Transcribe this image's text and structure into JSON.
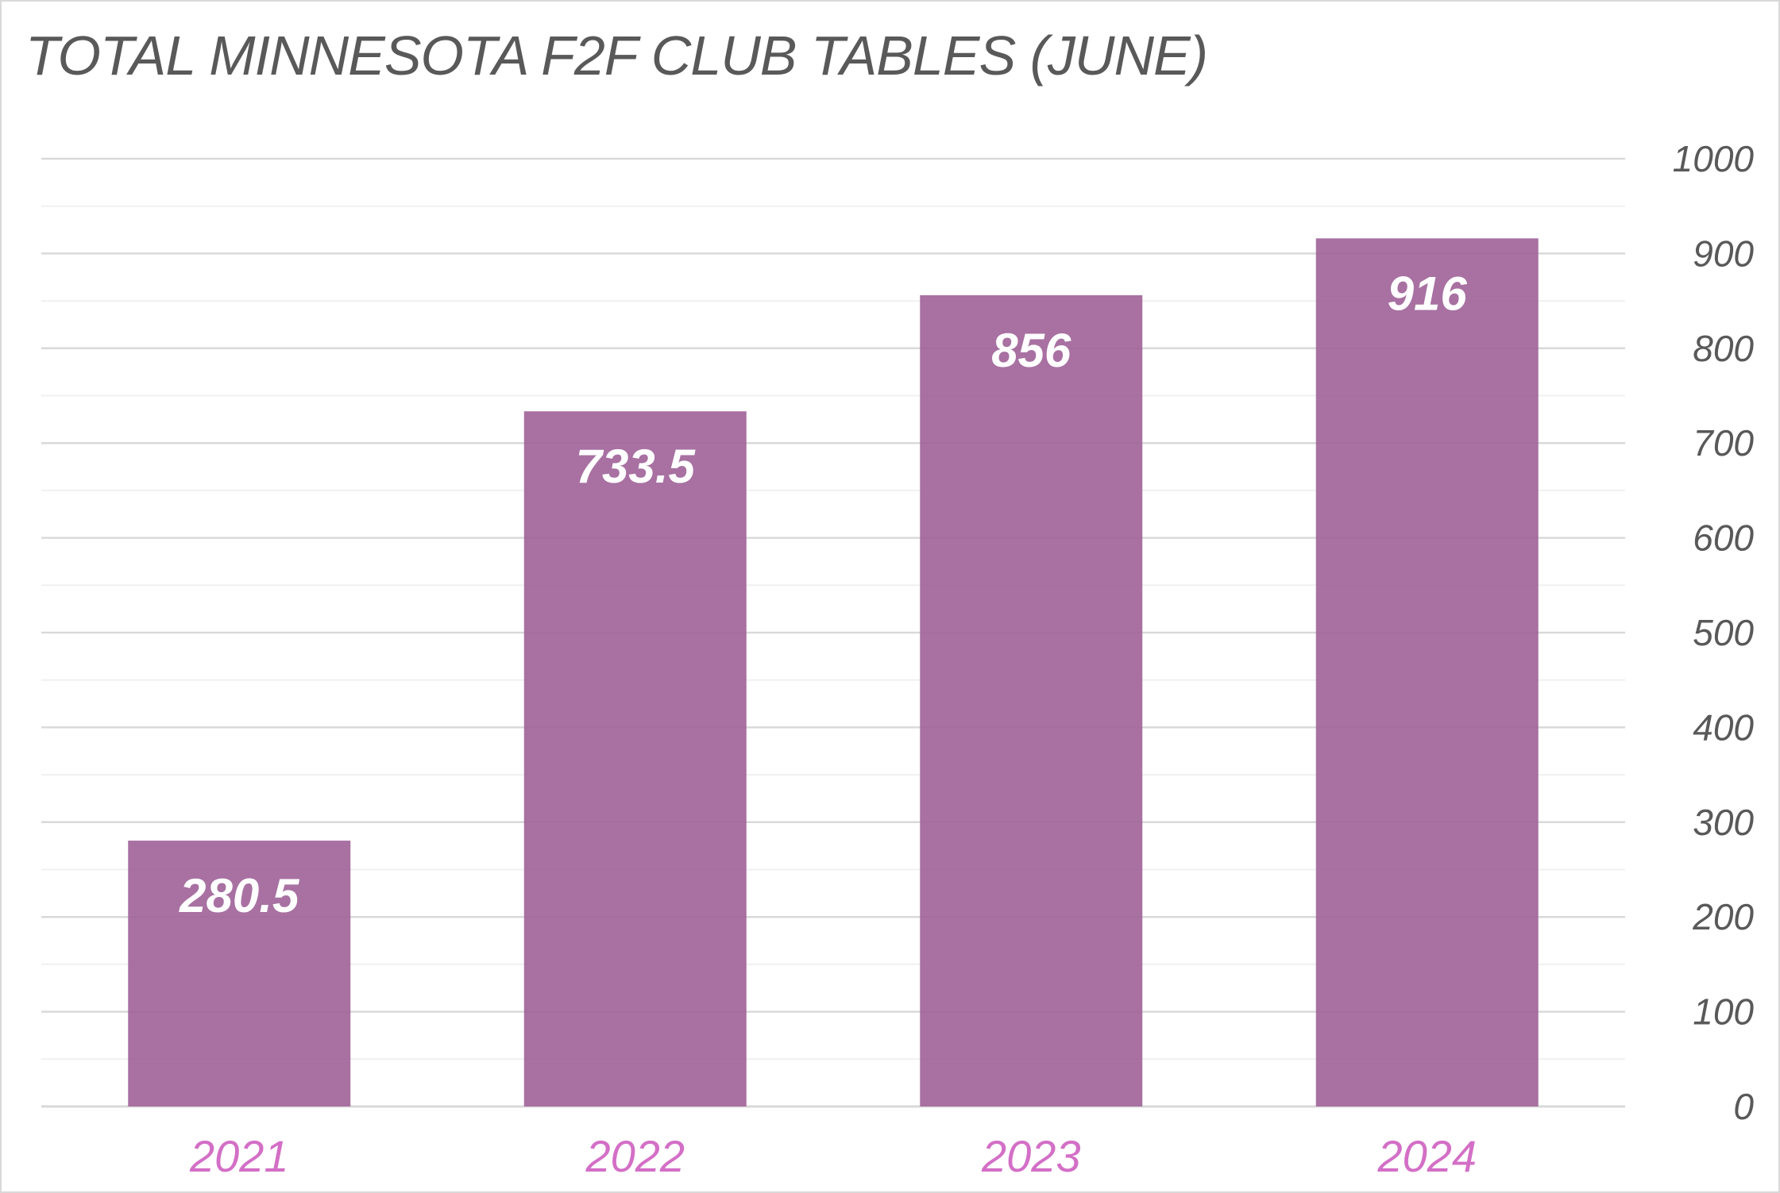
{
  "chart_data": {
    "type": "bar",
    "title": "TOTAL MINNESOTA F2F CLUB TABLES (JUNE)",
    "xlabel": "",
    "ylabel": "",
    "categories": [
      "2021",
      "2022",
      "2023",
      "2024"
    ],
    "series": [
      {
        "values": [
          280.5,
          733.5,
          856,
          916
        ]
      }
    ],
    "data_labels": [
      "280.5",
      "733.5",
      "856",
      "916"
    ],
    "ylim": [
      0,
      1000
    ],
    "y_ticks": [
      0,
      100,
      200,
      300,
      400,
      500,
      600,
      700,
      800,
      900,
      1000
    ],
    "y_axis_position": "right",
    "grid": true,
    "legend": "none",
    "colors": {
      "bar": "#9e6298",
      "category_labels": "#d36fc6",
      "tick_labels": "#595959",
      "title": "#595959",
      "major_grid": "#d9d9d9",
      "minor_grid": "#f0f0f0"
    }
  }
}
